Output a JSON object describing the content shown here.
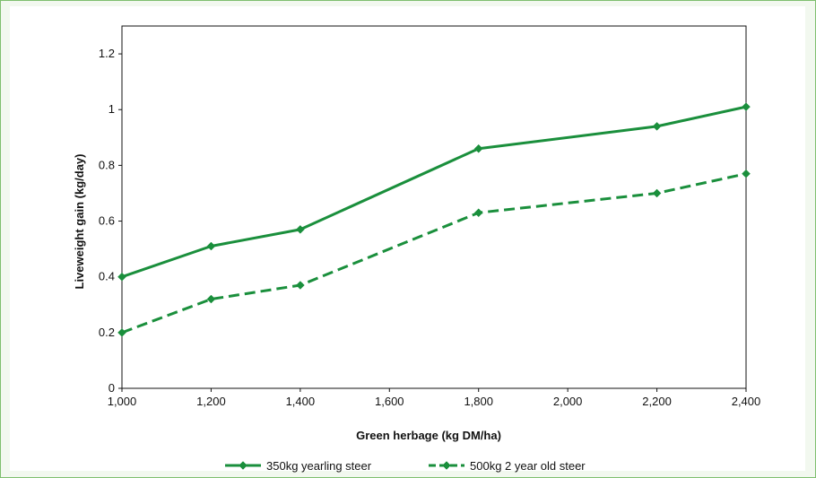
{
  "chart_data": {
    "type": "line",
    "xlabel": "Green herbage (kg DM/ha)",
    "ylabel": "Liveweight gain (kg/day)",
    "xlim": [
      1000,
      2400
    ],
    "ylim": [
      0,
      1.3
    ],
    "x_ticks": [
      1000,
      1200,
      1400,
      1600,
      1800,
      2000,
      2200,
      2400
    ],
    "x_tick_labels": [
      "1,000",
      "1,200",
      "1,400",
      "1,600",
      "1,800",
      "2,000",
      "2,200",
      "2,400"
    ],
    "y_ticks": [
      0,
      0.2,
      0.4,
      0.6,
      0.8,
      1,
      1.2
    ],
    "y_tick_labels": [
      "0",
      "0.2",
      "0.4",
      "0.6",
      "0.8",
      "1",
      "1.2"
    ],
    "grid": false,
    "legend_position": "bottom",
    "line_color": "#1a8f3c",
    "series": [
      {
        "name": "350kg yearling steer",
        "style": "solid",
        "x": [
          1000,
          1200,
          1400,
          1800,
          2200,
          2400
        ],
        "y": [
          0.4,
          0.51,
          0.57,
          0.86,
          0.94,
          1.01
        ]
      },
      {
        "name": "500kg 2 year old steer",
        "style": "dashed",
        "x": [
          1000,
          1200,
          1400,
          1800,
          2200,
          2400
        ],
        "y": [
          0.2,
          0.32,
          0.37,
          0.63,
          0.7,
          0.77
        ]
      }
    ]
  }
}
